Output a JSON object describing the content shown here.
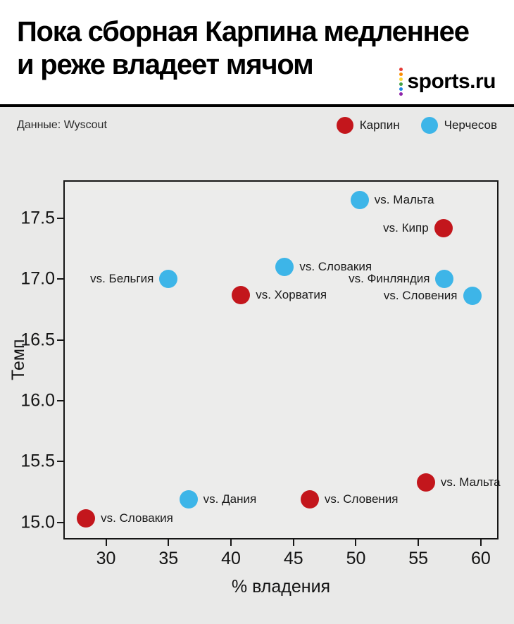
{
  "header": {
    "title_line1": "Пока сборная Карпина медленнее",
    "title_line2": "и реже владеет мячом",
    "logo_text": "sports.ru",
    "logo_dot_colors": [
      "#e53935",
      "#fb8c00",
      "#fdd835",
      "#43a047",
      "#1e88e5",
      "#8e24aa"
    ]
  },
  "subheader": {
    "source": "Данные: Wyscout"
  },
  "legend": {
    "items": [
      {
        "label": "Карпин",
        "color": "#c3161c"
      },
      {
        "label": "Черчесов",
        "color": "#3db5e8"
      }
    ]
  },
  "chart_data": {
    "type": "scatter",
    "title": "Пока сборная Карпина медленнее и реже владеет мячом",
    "xlabel": "% владения",
    "ylabel": "Темп",
    "xlim": [
      26.7,
      61.3
    ],
    "ylim": [
      14.87,
      17.8
    ],
    "x_ticks": [
      30,
      35,
      40,
      45,
      50,
      55,
      60
    ],
    "y_ticks": [
      15.0,
      15.5,
      16.0,
      16.5,
      17.0,
      17.5
    ],
    "grid": false,
    "legend_position": "top-right-above-plot",
    "marker_size_px": 26,
    "series": [
      {
        "name": "Карпин",
        "color": "#c3161c",
        "points": [
          {
            "label": "vs. Кипр",
            "x": 57.0,
            "y": 17.42,
            "label_side": "left"
          },
          {
            "label": "vs. Хорватия",
            "x": 40.8,
            "y": 16.87,
            "label_side": "right"
          },
          {
            "label": "vs. Мальта",
            "x": 55.6,
            "y": 15.33,
            "label_side": "right"
          },
          {
            "label": "vs. Словения",
            "x": 46.3,
            "y": 15.19,
            "label_side": "right"
          },
          {
            "label": "vs. Словакия",
            "x": 28.4,
            "y": 15.03,
            "label_side": "right"
          }
        ]
      },
      {
        "name": "Черчесов",
        "color": "#3db5e8",
        "points": [
          {
            "label": "vs. Мальта",
            "x": 50.3,
            "y": 17.65,
            "label_side": "right"
          },
          {
            "label": "vs. Словакия",
            "x": 44.3,
            "y": 17.1,
            "label_side": "right"
          },
          {
            "label": "vs. Бельгия",
            "x": 35.0,
            "y": 17.0,
            "label_side": "left"
          },
          {
            "label": "vs. Финляндия",
            "x": 57.1,
            "y": 17.0,
            "label_side": "left"
          },
          {
            "label": "vs. Словения",
            "x": 59.3,
            "y": 16.86,
            "label_side": "left"
          },
          {
            "label": "vs. Дания",
            "x": 36.6,
            "y": 15.19,
            "label_side": "right"
          }
        ]
      }
    ]
  }
}
